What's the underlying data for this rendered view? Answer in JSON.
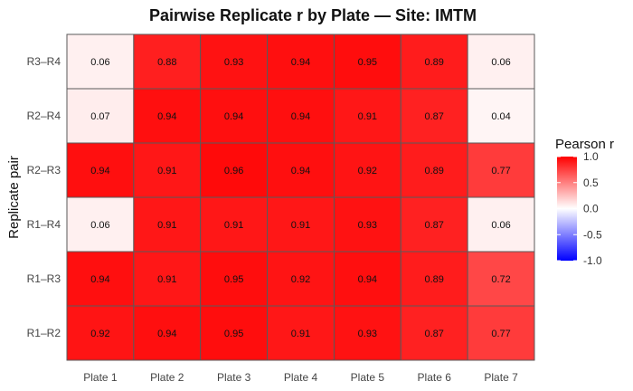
{
  "chart_data": {
    "type": "heatmap",
    "title": "Pairwise Replicate r by Plate — Site: IMTM",
    "xlabel": "",
    "ylabel": "Replicate pair",
    "x_categories": [
      "Plate 1",
      "Plate 2",
      "Plate 3",
      "Plate 4",
      "Plate 5",
      "Plate 6",
      "Plate 7"
    ],
    "y_categories": [
      "R3–R4",
      "R2–R4",
      "R2–R3",
      "R1–R4",
      "R1–R3",
      "R1–R2"
    ],
    "values": [
      [
        0.06,
        0.88,
        0.93,
        0.94,
        0.95,
        0.89,
        0.06
      ],
      [
        0.07,
        0.94,
        0.94,
        0.94,
        0.91,
        0.87,
        0.04
      ],
      [
        0.94,
        0.91,
        0.96,
        0.94,
        0.92,
        0.89,
        0.77
      ],
      [
        0.06,
        0.91,
        0.91,
        0.91,
        0.93,
        0.87,
        0.06
      ],
      [
        0.94,
        0.91,
        0.95,
        0.92,
        0.94,
        0.89,
        0.72
      ],
      [
        0.92,
        0.94,
        0.95,
        0.91,
        0.93,
        0.87,
        0.77
      ]
    ],
    "labels": [
      [
        "0.06",
        "0.88",
        "0.93",
        "0.94",
        "0.95",
        "0.89",
        "0.06"
      ],
      [
        "0.07",
        "0.94",
        "0.94",
        "0.94",
        "0.91",
        "0.87",
        "0.04"
      ],
      [
        "0.94",
        "0.91",
        "0.96",
        "0.94",
        "0.92",
        "0.89",
        "0.77"
      ],
      [
        "0.06",
        "0.91",
        "0.91",
        "0.91",
        "0.93",
        "0.87",
        "0.06"
      ],
      [
        "0.94",
        "0.91",
        "0.95",
        "0.92",
        "0.94",
        "0.89",
        "0.72"
      ],
      [
        "0.92",
        "0.94",
        "0.95",
        "0.91",
        "0.93",
        "0.87",
        "0.77"
      ]
    ],
    "legend": {
      "title": "Pearson r",
      "placement": "right",
      "ticks": [
        1.0,
        0.5,
        0.0,
        -0.5,
        -1.0
      ],
      "tick_labels": [
        "1.0",
        "0.5",
        "0.0",
        "-0.5",
        "-1.0"
      ],
      "range": [
        -1.0,
        1.0
      ]
    },
    "color_scale": {
      "low": "#0000ff",
      "mid": "#ffffff",
      "high": "#ff0000"
    },
    "grid": false
  }
}
